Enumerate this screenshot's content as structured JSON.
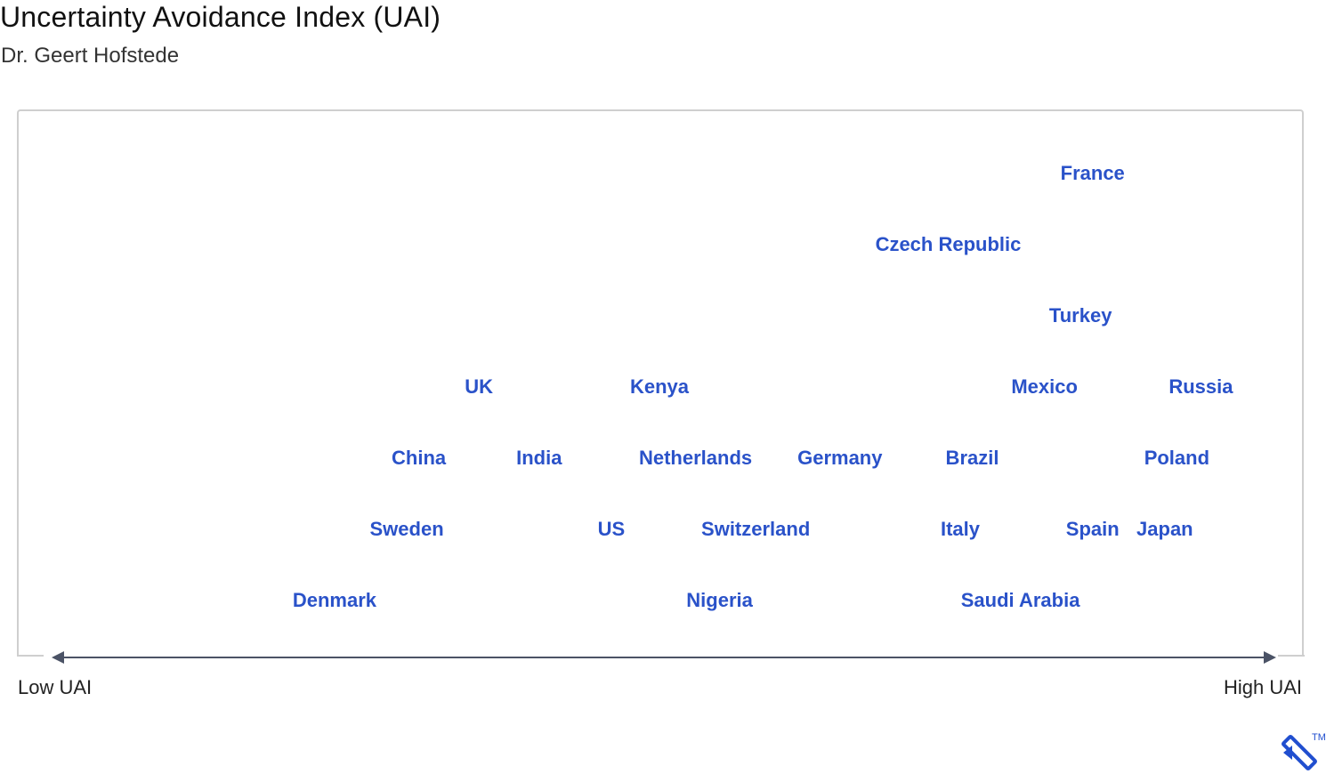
{
  "header": {
    "title": "Uncertainty Avoidance Index (UAI)",
    "subtitle": "Dr. Geert Hofstede"
  },
  "axis": {
    "low_label": "Low UAI",
    "high_label": "High UAI"
  },
  "countries": [
    {
      "name": "France",
      "uai": 86,
      "row": 1
    },
    {
      "name": "Czech Republic",
      "uai": 74,
      "row": 2
    },
    {
      "name": "Turkey",
      "uai": 85,
      "row": 3
    },
    {
      "name": "UK",
      "uai": 35,
      "row": 4
    },
    {
      "name": "Kenya",
      "uai": 50,
      "row": 4
    },
    {
      "name": "Mexico",
      "uai": 82,
      "row": 4
    },
    {
      "name": "Russia",
      "uai": 95,
      "row": 4
    },
    {
      "name": "China",
      "uai": 30,
      "row": 5
    },
    {
      "name": "India",
      "uai": 40,
      "row": 5
    },
    {
      "name": "Netherlands",
      "uai": 53,
      "row": 5
    },
    {
      "name": "Germany",
      "uai": 65,
      "row": 5
    },
    {
      "name": "Brazil",
      "uai": 76,
      "row": 5
    },
    {
      "name": "Poland",
      "uai": 93,
      "row": 5
    },
    {
      "name": "Sweden",
      "uai": 29,
      "row": 6
    },
    {
      "name": "US",
      "uai": 46,
      "row": 6
    },
    {
      "name": "Switzerland",
      "uai": 58,
      "row": 6
    },
    {
      "name": "Italy",
      "uai": 75,
      "row": 6
    },
    {
      "name": "Spain",
      "uai": 86,
      "row": 6
    },
    {
      "name": "Japan",
      "uai": 92,
      "row": 6
    },
    {
      "name": "Denmark",
      "uai": 23,
      "row": 7
    },
    {
      "name": "Nigeria",
      "uai": 55,
      "row": 7
    },
    {
      "name": "Saudi Arabia",
      "uai": 80,
      "row": 7
    }
  ],
  "logo": {
    "icon": "toptal-logo-icon",
    "mark": "TM",
    "color": "#204ecf"
  }
}
